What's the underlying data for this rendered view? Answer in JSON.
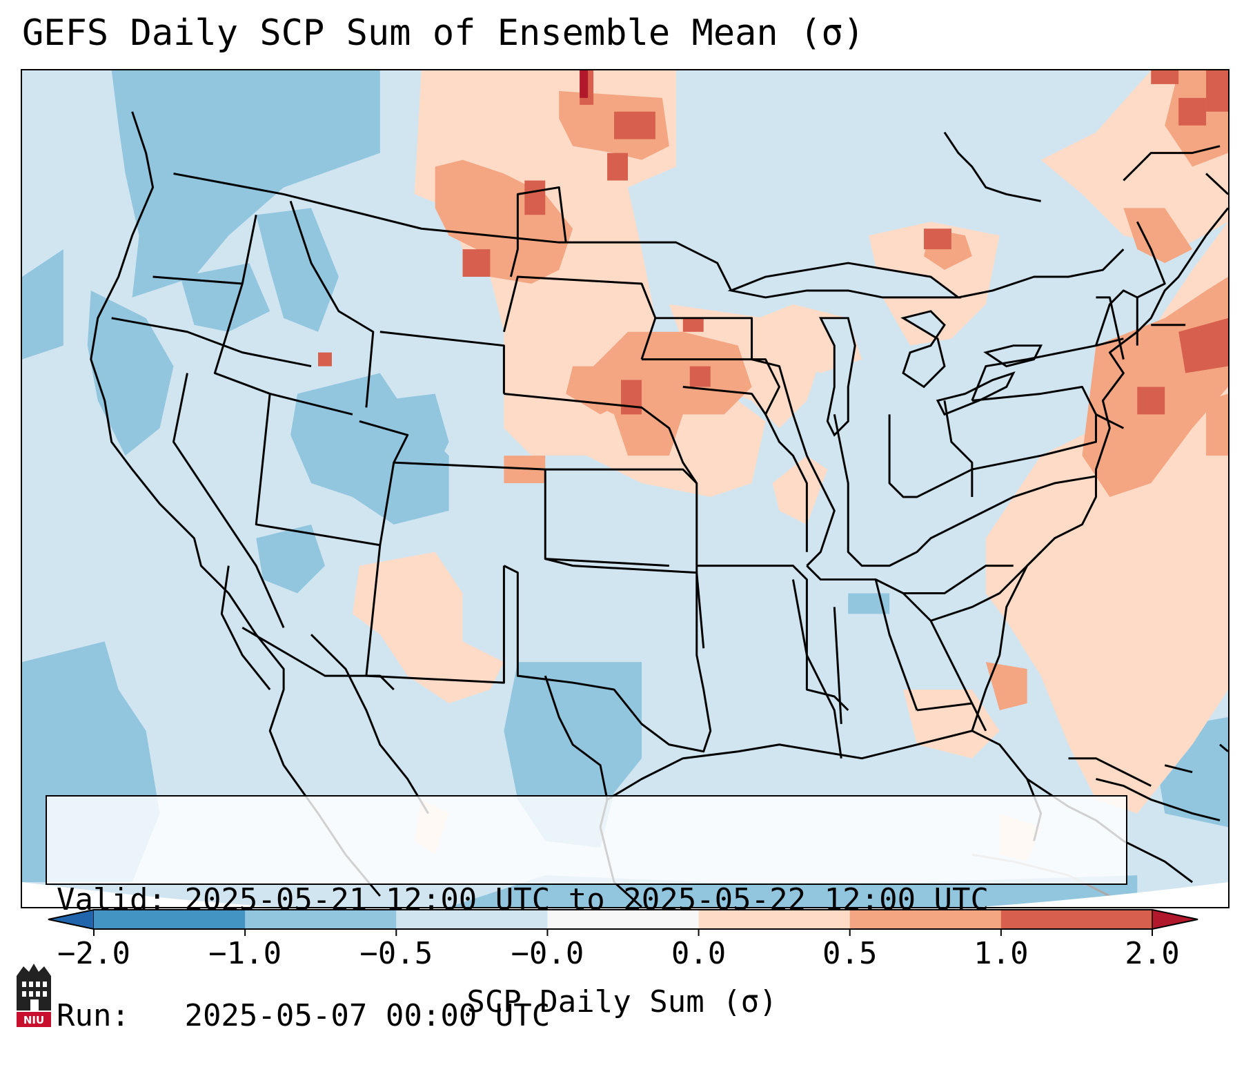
{
  "title": "GEFS Daily SCP Sum of Ensemble Mean (σ)",
  "info": {
    "valid_label": "Valid:",
    "valid_value": "2025-05-21 12:00 UTC to 2025-05-22 12:00 UTC",
    "run_label": "Run:",
    "run_value": "2025-05-07 00:00 UTC"
  },
  "colorbar": {
    "label": "SCP Daily Sum (σ)",
    "ticks": [
      "−2.0",
      "−1.0",
      "−0.5",
      "−0.0",
      "0.0",
      "0.5",
      "1.0",
      "2.0"
    ],
    "colors": [
      "#4393c3",
      "#92c5de",
      "#d1e5f0",
      "#f7f7f7",
      "#fddbc7",
      "#f4a582",
      "#d6604d"
    ],
    "under_color": "#2166ac",
    "over_color": "#b2182b",
    "extend": "both"
  },
  "map": {
    "projection": "Lambert Conformal (CONUS)",
    "region": "Contiguous United States",
    "background_color": "#d1e5f0",
    "line_color": "#000000"
  },
  "logo": {
    "text": "NIU"
  }
}
